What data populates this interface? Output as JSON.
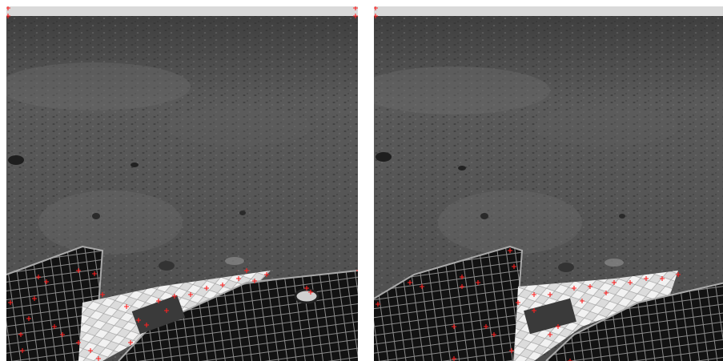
{
  "figure": {
    "panels": [
      {
        "id": "left",
        "label": ""
      },
      {
        "id": "right",
        "label": ""
      }
    ],
    "colors": {
      "sky": "#d9d9d9",
      "ground_far": "#4a4a4a",
      "ground_mid": "#5e5e5e",
      "ground_near": "#575757",
      "solar_panel": "#111111",
      "solar_grid": "#8a8a8a",
      "airbag": "#e0e0e0",
      "keypoint_marker": "#ff2020"
    },
    "keypoint_marker_icon": "red-plus-marker-icon"
  }
}
